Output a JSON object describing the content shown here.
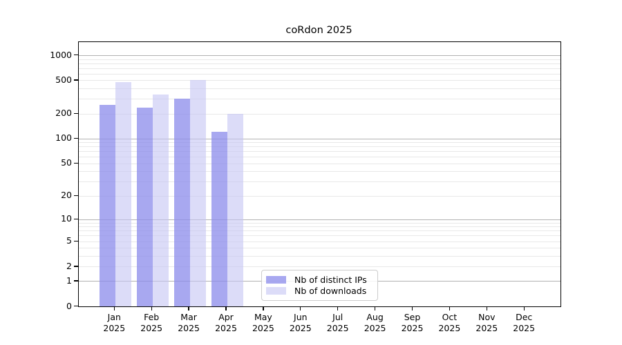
{
  "title": "coRdon 2025",
  "legend": {
    "items": [
      {
        "label": "Nb of distinct IPs",
        "color": "rgba(139,139,235,0.75)"
      },
      {
        "label": "Nb of downloads",
        "color": "rgba(196,196,244,0.60)"
      }
    ]
  },
  "chart_data": {
    "type": "bar",
    "title": "coRdon 2025",
    "scale": "log1p",
    "categories": [
      "Jan",
      "Feb",
      "Mar",
      "Apr",
      "May",
      "Jun",
      "Jul",
      "Aug",
      "Sep",
      "Oct",
      "Nov",
      "Dec"
    ],
    "category_year": "2025",
    "series": [
      {
        "name": "Nb of distinct IPs",
        "color": "rgba(139,139,235,0.75)",
        "values": [
          255,
          235,
          300,
          122,
          null,
          null,
          null,
          null,
          null,
          null,
          null,
          null
        ]
      },
      {
        "name": "Nb of downloads",
        "color": "rgba(196,196,244,0.60)",
        "values": [
          480,
          340,
          505,
          198,
          null,
          null,
          null,
          null,
          null,
          null,
          null,
          null
        ]
      }
    ],
    "yticks": [
      0,
      1,
      2,
      5,
      10,
      20,
      50,
      100,
      200,
      500,
      1000
    ],
    "ylim": [
      0,
      1435
    ],
    "grid": "horizontal",
    "grid_major_color": "#b2b2b2",
    "grid_minor_color": "#e8e8e8",
    "legend_position": "lower-center"
  }
}
